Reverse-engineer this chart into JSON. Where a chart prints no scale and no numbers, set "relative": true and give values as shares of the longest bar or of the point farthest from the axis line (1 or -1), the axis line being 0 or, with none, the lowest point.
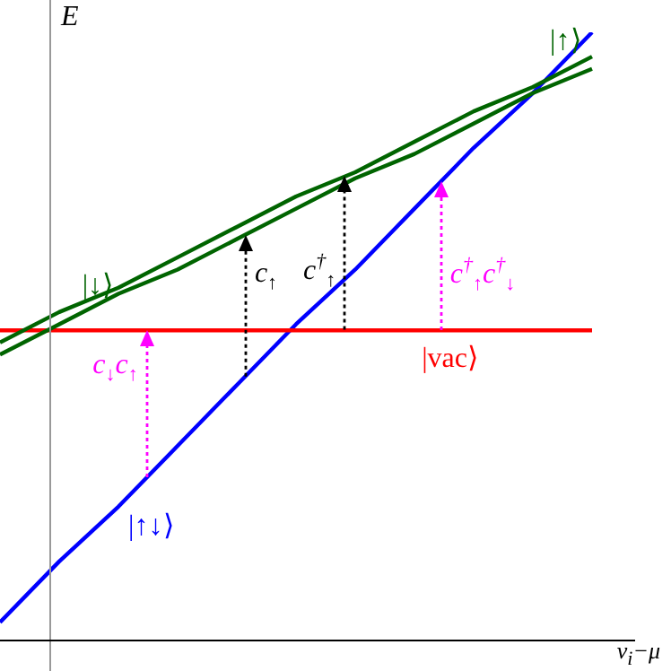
{
  "chart_data": {
    "type": "line",
    "relative": true,
    "xlabel": "v$_{i}$−μ",
    "ylabel": "E",
    "legend": false,
    "marker": "none",
    "line_style": "solid",
    "categories": [
      null,
      null,
      null,
      null,
      null,
      null,
      null,
      null,
      null,
      null,
      null
    ],
    "series": [
      {
        "name": "|↑⟩",
        "color": "#006400",
        "values": [
          0.49,
          0.54,
          0.58,
          0.63,
          0.68,
          0.73,
          0.77,
          0.82,
          0.87,
          0.91,
          0.96
        ]
      },
      {
        "name": "|↓⟩",
        "color": "#006400",
        "values": [
          0.47,
          0.52,
          0.57,
          0.61,
          0.66,
          0.71,
          0.76,
          0.8,
          0.85,
          0.9,
          0.94
        ]
      },
      {
        "name": "|vac⟩",
        "color": "#ff0000",
        "values": [
          0.51,
          0.51,
          0.51,
          0.51,
          0.51,
          0.51,
          0.51,
          0.51,
          0.51,
          0.51,
          0.51
        ]
      },
      {
        "name": "|↑↓⟩",
        "color": "#0000ff",
        "values": [
          0.03,
          0.13,
          0.22,
          0.32,
          0.42,
          0.52,
          0.61,
          0.71,
          0.81,
          0.9,
          1.0
        ]
      }
    ],
    "annotations": [
      "c$_{↓}$c$_{↑}$",
      "c$_{↑}$",
      "c$^{†}$$_{↑}$",
      "c$^{†}$$_{↑}$c$^{†}$$_{↓}$"
    ]
  }
}
